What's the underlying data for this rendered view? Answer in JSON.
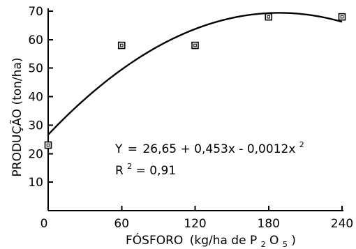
{
  "chart_data": {
    "type": "scatter",
    "xlabel": "FÓSFORO",
    "xlabel_unit_open": "(kg/ha de P",
    "xlabel_unit_sub1": "2",
    "xlabel_unit_O": "O",
    "xlabel_unit_sub2": "5",
    "xlabel_unit_close": ")",
    "ylabel": "PRODUÇÃO (ton/ha)",
    "xlim": [
      0,
      240
    ],
    "ylim": [
      0,
      70
    ],
    "x_ticks": [
      0,
      60,
      120,
      180,
      240
    ],
    "y_ticks": [
      0,
      10,
      20,
      30,
      40,
      50,
      60,
      70
    ],
    "x_tick_labels": [
      "0",
      "60",
      "120",
      "180",
      "240"
    ],
    "y_tick_labels": [
      "",
      "10",
      "20",
      "30",
      "40",
      "50",
      "60",
      "70"
    ],
    "points": [
      {
        "x": 0,
        "y": 23
      },
      {
        "x": 60,
        "y": 58
      },
      {
        "x": 120,
        "y": 58
      },
      {
        "x": 180,
        "y": 68
      },
      {
        "x": 240,
        "y": 68
      }
    ],
    "fit": {
      "intercept": 26.65,
      "b1": 0.453,
      "b2": -0.0012
    },
    "equation_lhs": "Y",
    "equation_rhs": "26,65 + 0,453x - 0,0012x",
    "equation_exp": "2",
    "r2_label": "R",
    "r2_exp": "2",
    "r2_value": "0,91",
    "grid": false
  }
}
